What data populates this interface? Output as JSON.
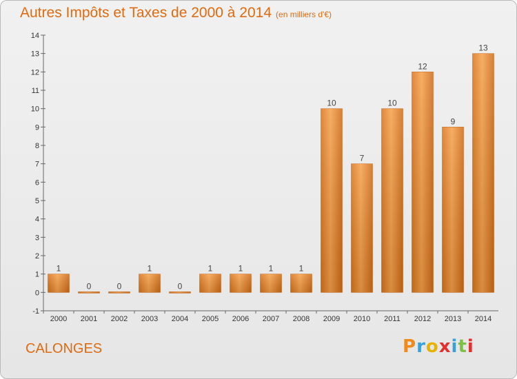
{
  "chart_data": {
    "type": "bar",
    "title": "Autres Impôts et Taxes de 2000 à 2014",
    "subtitle": "(en milliers d'€)",
    "categories": [
      "2000",
      "2001",
      "2002",
      "2003",
      "2004",
      "2005",
      "2006",
      "2007",
      "2008",
      "2009",
      "2010",
      "2011",
      "2012",
      "2013",
      "2014"
    ],
    "values": [
      1,
      0,
      0,
      1,
      0,
      1,
      1,
      1,
      1,
      10,
      7,
      10,
      12,
      9,
      13
    ],
    "data_labels": [
      "1",
      "0",
      "0",
      "1",
      "0",
      "1",
      "1",
      "1",
      "1",
      "10",
      "7",
      "10",
      "12",
      "9",
      "13"
    ],
    "ylim": [
      -1,
      14
    ],
    "yticks": [
      -1,
      0,
      1,
      2,
      3,
      4,
      5,
      6,
      7,
      8,
      9,
      10,
      11,
      12,
      13,
      14
    ],
    "ytick_labels": [
      "-1",
      "0",
      "1",
      "2",
      "3",
      "4",
      "5",
      "6",
      "7",
      "8",
      "9",
      "10",
      "11",
      "12",
      "13",
      "14"
    ],
    "grid": false,
    "bar_color": "#f0902a"
  },
  "footer": {
    "commune": "CALONGES",
    "logo": {
      "letters": [
        "P",
        "r",
        "o",
        "x",
        "i",
        "t",
        "i"
      ],
      "colors": [
        "#f08a1c",
        "#3aa0d8",
        "#e6b400",
        "#e03030",
        "#3aa0d8",
        "#7cc242",
        "#e03030"
      ]
    }
  }
}
